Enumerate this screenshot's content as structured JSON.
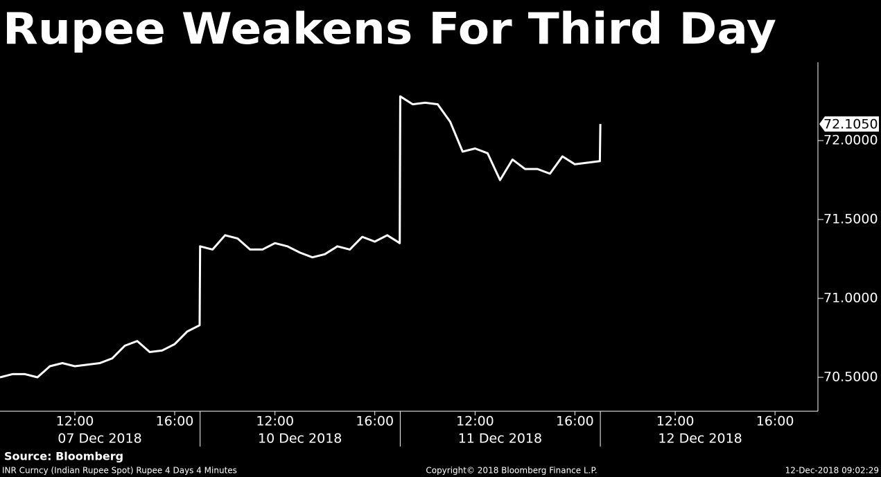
{
  "chart_data": {
    "type": "line",
    "title": "Rupee Weakens For Third Day",
    "source": "Source: Bloomberg",
    "footer_left": "INR Curncy (Indian Rupee Spot) Rupee 4 Days 4 Minutes",
    "footer_center": "Copyright© 2018 Bloomberg Finance L.P.",
    "footer_right": "12-Dec-2018 09:02:29",
    "days": [
      {
        "label": "07 Dec 2018",
        "ticks": [
          "12:00",
          "16:00"
        ]
      },
      {
        "label": "10 Dec 2018",
        "ticks": [
          "12:00",
          "16:00"
        ]
      },
      {
        "label": "11 Dec 2018",
        "ticks": [
          "12:00",
          "16:00"
        ]
      },
      {
        "label": "12 Dec 2018",
        "ticks": [
          "12:00",
          "16:00"
        ]
      }
    ],
    "x": [
      "07 Dec 2018 09:00",
      "07 Dec 2018 09:30",
      "07 Dec 2018 10:00",
      "07 Dec 2018 10:30",
      "07 Dec 2018 11:00",
      "07 Dec 2018 11:30",
      "07 Dec 2018 12:00",
      "07 Dec 2018 12:30",
      "07 Dec 2018 13:00",
      "07 Dec 2018 13:30",
      "07 Dec 2018 14:00",
      "07 Dec 2018 14:30",
      "07 Dec 2018 15:00",
      "07 Dec 2018 15:30",
      "07 Dec 2018 16:00",
      "07 Dec 2018 16:30",
      "07 Dec 2018 17:00",
      "10 Dec 2018 09:00",
      "10 Dec 2018 09:30",
      "10 Dec 2018 10:00",
      "10 Dec 2018 10:30",
      "10 Dec 2018 11:00",
      "10 Dec 2018 11:30",
      "10 Dec 2018 12:00",
      "10 Dec 2018 12:30",
      "10 Dec 2018 13:00",
      "10 Dec 2018 13:30",
      "10 Dec 2018 14:00",
      "10 Dec 2018 14:30",
      "10 Dec 2018 15:00",
      "10 Dec 2018 15:30",
      "10 Dec 2018 16:00",
      "10 Dec 2018 16:30",
      "10 Dec 2018 17:00",
      "11 Dec 2018 09:00",
      "11 Dec 2018 09:30",
      "11 Dec 2018 10:00",
      "11 Dec 2018 10:30",
      "11 Dec 2018 11:00",
      "11 Dec 2018 11:30",
      "11 Dec 2018 12:00",
      "11 Dec 2018 12:30",
      "11 Dec 2018 13:00",
      "11 Dec 2018 13:30",
      "11 Dec 2018 14:00",
      "11 Dec 2018 14:30",
      "11 Dec 2018 15:00",
      "11 Dec 2018 15:30",
      "11 Dec 2018 16:00",
      "11 Dec 2018 16:30",
      "11 Dec 2018 17:00",
      "12 Dec 2018 09:00"
    ],
    "series": [
      {
        "name": "INR Curncy",
        "color": "#ffffff",
        "values": [
          70.5,
          70.52,
          70.52,
          70.5,
          70.57,
          70.59,
          70.57,
          70.58,
          70.59,
          70.62,
          70.7,
          70.73,
          70.66,
          70.67,
          70.71,
          70.79,
          70.83,
          71.33,
          71.31,
          71.4,
          71.38,
          71.31,
          71.31,
          71.35,
          71.33,
          71.29,
          71.26,
          71.28,
          71.33,
          71.31,
          71.39,
          71.36,
          71.4,
          71.35,
          72.28,
          72.23,
          72.24,
          72.23,
          72.12,
          71.93,
          71.95,
          71.92,
          71.75,
          71.88,
          71.82,
          71.82,
          71.79,
          71.9,
          71.85,
          71.86,
          71.87,
          72.105
        ]
      }
    ],
    "last_value": {
      "value": 72.105,
      "label": "72.1050"
    },
    "ylim": [
      70.285,
      72.496
    ],
    "yticks": [
      {
        "value": 70.5,
        "label": "70.5000"
      },
      {
        "value": 71,
        "label": "71.0000"
      },
      {
        "value": 71.5,
        "label": "71.5000"
      },
      {
        "value": 72,
        "label": "72.0000"
      }
    ]
  }
}
